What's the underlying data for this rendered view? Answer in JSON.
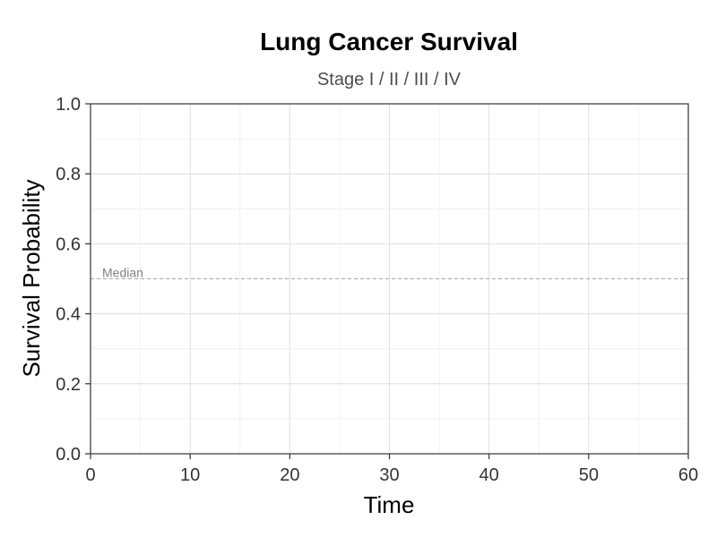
{
  "chart_data": {
    "type": "line",
    "title": "Lung Cancer Survival",
    "subtitle": "Stage I / II / III / IV",
    "xlabel": "Time",
    "ylabel": "Survival Probability",
    "xlim": [
      0,
      60
    ],
    "ylim": [
      0,
      1
    ],
    "x_ticks": [
      0,
      10,
      20,
      30,
      40,
      50,
      60
    ],
    "x_tick_labels": [
      "0",
      "10",
      "20",
      "30",
      "40",
      "50",
      "60"
    ],
    "y_ticks": [
      0,
      0.2,
      0.4,
      0.6,
      0.8,
      1.0
    ],
    "y_tick_labels": [
      "0.0",
      "0.2",
      "0.4",
      "0.6",
      "0.8",
      "1.0"
    ],
    "grid": true,
    "series": [],
    "reference_lines": [
      {
        "axis": "y",
        "value": 0.5,
        "label": "Median",
        "style": "dashed"
      }
    ],
    "colors": {
      "panel_background": "#ffffff",
      "grid_major": "#dedede",
      "grid_minor": "#efefef",
      "axis": "#333333",
      "reference_line": "#a6a6a6"
    }
  }
}
